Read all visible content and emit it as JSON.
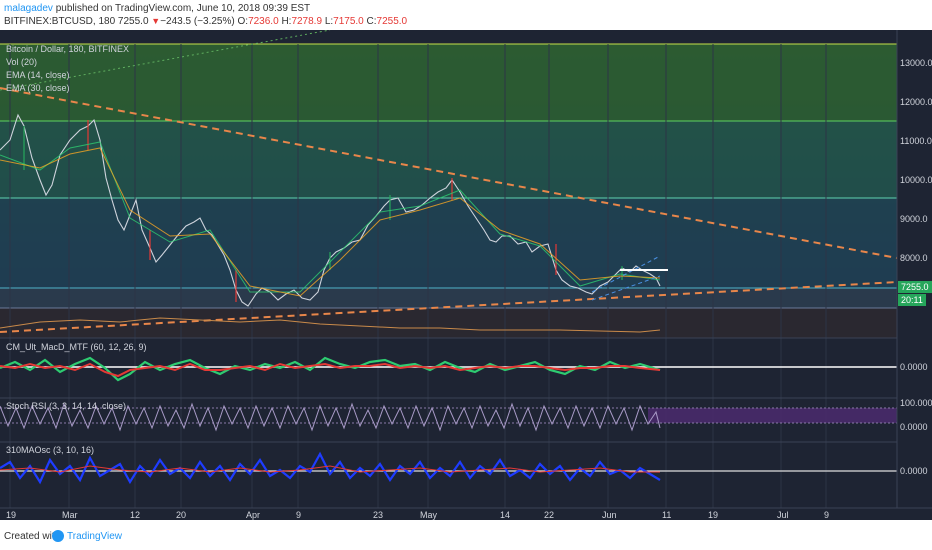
{
  "header": {
    "author": "malagadev",
    "published_text": "published on TradingView.com, June 10, 2018 09:39 EST",
    "symbol": "BITFINEX:BTCUSD, 180",
    "last": "7255.0",
    "change_arrow": "▼",
    "change": "−243.5 (−3.25%)",
    "o_label": "O:",
    "o_value": "7236.0",
    "h_label": "H:",
    "h_value": "7278.9",
    "l_label": "L:",
    "l_value": "7175.0",
    "c_label": "C:",
    "c_value": "7255.0"
  },
  "legends": {
    "main_title": "Bitcoin / Dollar, 180, BITFINEX",
    "vol": "Vol (20)",
    "ema14": "EMA (14, close)",
    "ema30": "EMA (30, close)",
    "macd": "CM_Ult_MacD_MTF (60, 12, 26, 9)",
    "stoch": "Stoch RSI (3, 3, 14, 14, close)",
    "osc": "310MAOsc (3, 10, 16)"
  },
  "price_axis": {
    "labels": [
      "13000.0",
      "12000.0",
      "11000.0",
      "10000.0",
      "9000.0",
      "8000.0"
    ],
    "current_price": "7255.0",
    "countdown": "20:11"
  },
  "macd_axis": {
    "labels": [
      "0.0000"
    ]
  },
  "stoch_axis": {
    "labels": [
      "100.0000",
      "0.0000"
    ]
  },
  "osc_axis": {
    "labels": [
      "0.0000"
    ]
  },
  "time_axis": {
    "labels": [
      "19",
      "Mar",
      "12",
      "20",
      "Apr",
      "9",
      "23",
      "May",
      "14",
      "22",
      "Jun",
      "11",
      "19",
      "Jul",
      "9"
    ]
  },
  "colors": {
    "background": "#1e2433",
    "candle_up": "#26a65b",
    "candle_down": "#e53935",
    "trendline": "#e8864a",
    "ema": "#f6a623",
    "stoch_band": "#4b2a6e",
    "accent": "#2196f3"
  },
  "footer": {
    "created_with": "Created with",
    "brand": "TradingView"
  }
}
